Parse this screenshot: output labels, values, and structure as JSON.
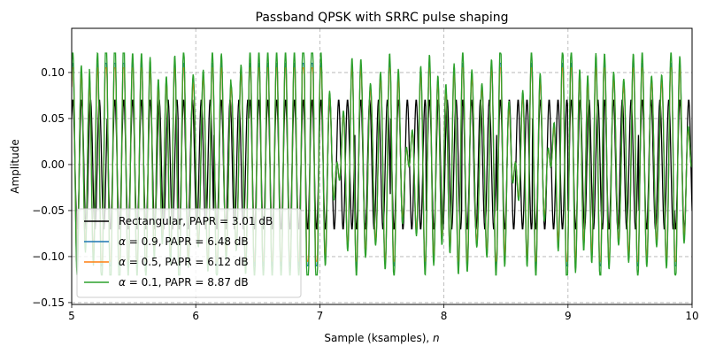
{
  "chart_data": {
    "type": "line",
    "title": "Passband QPSK with SRRC pulse shaping",
    "xlabel": "Sample (ksamples), ",
    "xlabel_var": "n",
    "ylabel": "Amplitude",
    "xlim": [
      5,
      10
    ],
    "ylim": [
      -0.152,
      0.148
    ],
    "xticks": [
      5,
      6,
      7,
      8,
      9,
      10
    ],
    "xtick_labels": [
      "5",
      "6",
      "7",
      "8",
      "9",
      "10"
    ],
    "yticks": [
      -0.15,
      -0.1,
      -0.05,
      0.0,
      0.05,
      0.1
    ],
    "ytick_labels": [
      "−0.15",
      "−0.10",
      "−0.05",
      "0.00",
      "0.05",
      "0.10"
    ],
    "grid": true,
    "legend_position": "lower-left",
    "carrier_cycles_per_ksample": 14,
    "series": [
      {
        "name": "Rectangular, PAPR = 3.01 dB",
        "name_parts": [
          "",
          "Rectangular, PAPR = 3.01 dB"
        ],
        "color": "#000000",
        "kind": "rectangular",
        "amplitude": 0.0707,
        "zero_crossing_spikes": 0.07
      },
      {
        "name": "α = 0.9, PAPR = 6.48 dB",
        "name_parts": [
          "α",
          " = 0.9, PAPR = 6.48 dB"
        ],
        "color": "#1f77b4",
        "kind": "srrc",
        "alpha": 0.9,
        "typical_peak": 0.085,
        "max_peak": 0.11,
        "min_trough": -0.11
      },
      {
        "name": "α = 0.5, PAPR = 6.12 dB",
        "name_parts": [
          "α",
          " = 0.5, PAPR = 6.12 dB"
        ],
        "color": "#ff7f0e",
        "kind": "srrc",
        "alpha": 0.5,
        "typical_peak": 0.085,
        "max_peak": 0.105,
        "min_trough": -0.105
      },
      {
        "name": "α = 0.1, PAPR = 8.87 dB",
        "name_parts": [
          "α",
          " = 0.1, PAPR = 8.87 dB"
        ],
        "color": "#2ca02c",
        "kind": "srrc",
        "alpha": 0.1,
        "typical_peak": 0.09,
        "max_peak": 0.121,
        "min_trough": -0.12
      }
    ]
  }
}
